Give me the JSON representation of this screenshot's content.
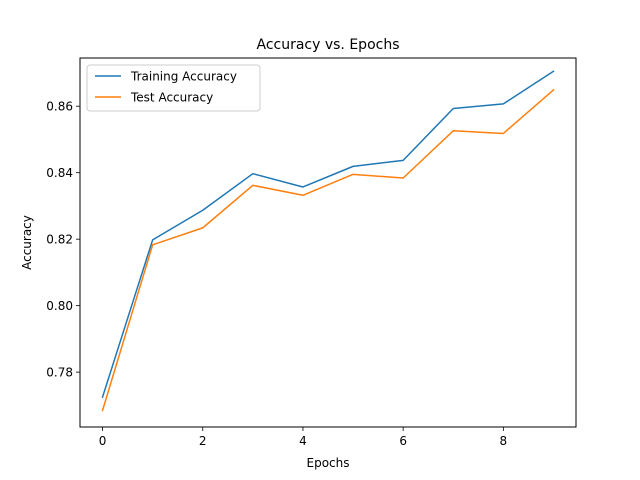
{
  "chart_data": {
    "type": "line",
    "title": "Accuracy vs. Epochs",
    "xlabel": "Epochs",
    "ylabel": "Accuracy",
    "xlim": [
      -0.45,
      9.45
    ],
    "ylim": [
      0.7635,
      0.8745
    ],
    "xticks": [
      0,
      2,
      4,
      6,
      8
    ],
    "xtick_labels": [
      "0",
      "2",
      "4",
      "6",
      "8"
    ],
    "yticks": [
      0.78,
      0.8,
      0.82,
      0.84,
      0.86
    ],
    "ytick_labels": [
      "0.78",
      "0.80",
      "0.82",
      "0.84",
      "0.86"
    ],
    "grid": false,
    "legend_position": "upper left",
    "x": [
      0,
      1,
      2,
      3,
      4,
      5,
      6,
      7,
      8,
      9
    ],
    "series": [
      {
        "name": "Training Accuracy",
        "color": "#1f77b4",
        "values": [
          0.7725,
          0.8198,
          0.8287,
          0.8397,
          0.8357,
          0.8419,
          0.8437,
          0.8593,
          0.8607,
          0.8705
        ]
      },
      {
        "name": "Test Accuracy",
        "color": "#ff7f0e",
        "values": [
          0.7685,
          0.8183,
          0.8234,
          0.8362,
          0.8332,
          0.8395,
          0.8384,
          0.8526,
          0.8518,
          0.8649
        ]
      }
    ]
  }
}
